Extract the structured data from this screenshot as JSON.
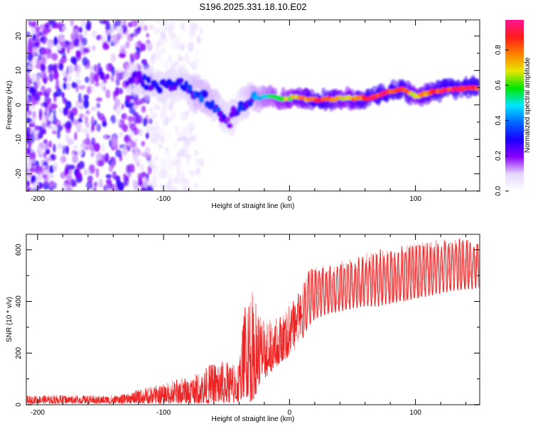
{
  "figure": {
    "title": "S196.2025.331.18.10.E02"
  },
  "chart_data": [
    {
      "type": "heatmap",
      "name": "spectrogram",
      "title": "S196.2025.331.18.10.E02",
      "xlabel": "Height of straight line (km)",
      "ylabel": "Frequency (Hz)",
      "xlim": [
        -209,
        151
      ],
      "ylim": [
        -25,
        24.7
      ],
      "xticks": [
        -200,
        -100,
        0,
        100
      ],
      "xtick_labels": [
        "-200",
        "-100",
        "0",
        "100"
      ],
      "xminor_step": 20,
      "yticks": [
        -20,
        -10,
        0,
        10,
        20
      ],
      "ytick_labels": [
        "-20",
        "-10",
        "0",
        "10",
        "20"
      ],
      "yminor_step": 5,
      "colorbar": {
        "label": "Normalized spectral amplitude",
        "range": [
          0.0,
          0.97
        ],
        "ticks": [
          0.0,
          0.2,
          0.4,
          0.6,
          0.8
        ],
        "tick_labels": [
          "0.0",
          "0.2",
          "0.4",
          "0.6",
          "0.8"
        ],
        "colormap": [
          "#ffffff",
          "#e6d6ff",
          "#8a00ff",
          "#1a00ff",
          "#0066ff",
          "#00e6ff",
          "#00e600",
          "#e6e600",
          "#ff8000",
          "#ff1a1a",
          "#ff1493"
        ]
      },
      "ridge": {
        "description": "dominant frequency track (km, Hz, peak amplitude)",
        "points": [
          [
            -130,
            7,
            0.25
          ],
          [
            -120,
            7.5,
            0.3
          ],
          [
            -110,
            6,
            0.35
          ],
          [
            -100,
            5,
            0.3
          ],
          [
            -90,
            6.5,
            0.3
          ],
          [
            -80,
            5,
            0.35
          ],
          [
            -72,
            3,
            0.4
          ],
          [
            -62,
            1,
            0.4
          ],
          [
            -55,
            -2,
            0.35
          ],
          [
            -48,
            -5,
            0.3
          ],
          [
            -42,
            -1,
            0.35
          ],
          [
            -35,
            1,
            0.35
          ],
          [
            -25,
            2,
            0.45
          ],
          [
            -15,
            2.5,
            0.55
          ],
          [
            -5,
            1.5,
            0.65
          ],
          [
            5,
            2.5,
            0.75
          ],
          [
            15,
            1.5,
            0.8
          ],
          [
            25,
            1.5,
            0.95
          ],
          [
            45,
            2,
            0.7
          ],
          [
            65,
            2,
            0.95
          ],
          [
            80,
            4,
            0.9
          ],
          [
            90,
            4.5,
            0.95
          ],
          [
            100,
            2.5,
            0.7
          ],
          [
            115,
            4,
            0.9
          ],
          [
            130,
            4.5,
            0.95
          ],
          [
            150,
            5,
            0.95
          ]
        ]
      },
      "noise_region_km": [
        -209,
        -110
      ],
      "noise_amplitude": 0.15
    },
    {
      "type": "line",
      "name": "snr",
      "xlabel": "Height of straight line (km)",
      "ylabel": "SNR (10 * v/v)",
      "xlim": [
        -209,
        151
      ],
      "ylim": [
        0,
        660
      ],
      "xticks": [
        -200,
        -100,
        0,
        100
      ],
      "xtick_labels": [
        "-200",
        "-100",
        "0",
        "100"
      ],
      "xminor_step": 20,
      "yticks": [
        0,
        200,
        400,
        600
      ],
      "ytick_labels": [
        "0",
        "200",
        "400",
        "600"
      ],
      "yminor_step": 100,
      "color": "#ee2222",
      "series": [
        {
          "name": "SNR",
          "description": "envelope (km, lower, upper)",
          "envelope": [
            [
              -209,
              5,
              35
            ],
            [
              -180,
              5,
              38
            ],
            [
              -150,
              5,
              35
            ],
            [
              -130,
              5,
              40
            ],
            [
              -120,
              5,
              60
            ],
            [
              -100,
              5,
              80
            ],
            [
              -90,
              5,
              100
            ],
            [
              -80,
              5,
              110
            ],
            [
              -70,
              5,
              130
            ],
            [
              -60,
              5,
              170
            ],
            [
              -50,
              5,
              170
            ],
            [
              -45,
              5,
              160
            ],
            [
              -40,
              10,
              180
            ],
            [
              -35,
              30,
              430
            ],
            [
              -30,
              5,
              450
            ],
            [
              -25,
              60,
              380
            ],
            [
              -20,
              100,
              320
            ],
            [
              -10,
              150,
              340
            ],
            [
              -5,
              170,
              360
            ],
            [
              0,
              180,
              400
            ],
            [
              5,
              220,
              440
            ],
            [
              10,
              250,
              460
            ],
            [
              15,
              300,
              520
            ],
            [
              20,
              330,
              540
            ],
            [
              30,
              350,
              540
            ],
            [
              40,
              360,
              560
            ],
            [
              50,
              370,
              570
            ],
            [
              60,
              380,
              590
            ],
            [
              70,
              380,
              600
            ],
            [
              80,
              390,
              610
            ],
            [
              90,
              400,
              620
            ],
            [
              100,
              410,
              630
            ],
            [
              110,
              420,
              630
            ],
            [
              120,
              430,
              640
            ],
            [
              130,
              440,
              650
            ],
            [
              140,
              445,
              650
            ],
            [
              151,
              450,
              655
            ]
          ]
        }
      ]
    }
  ]
}
